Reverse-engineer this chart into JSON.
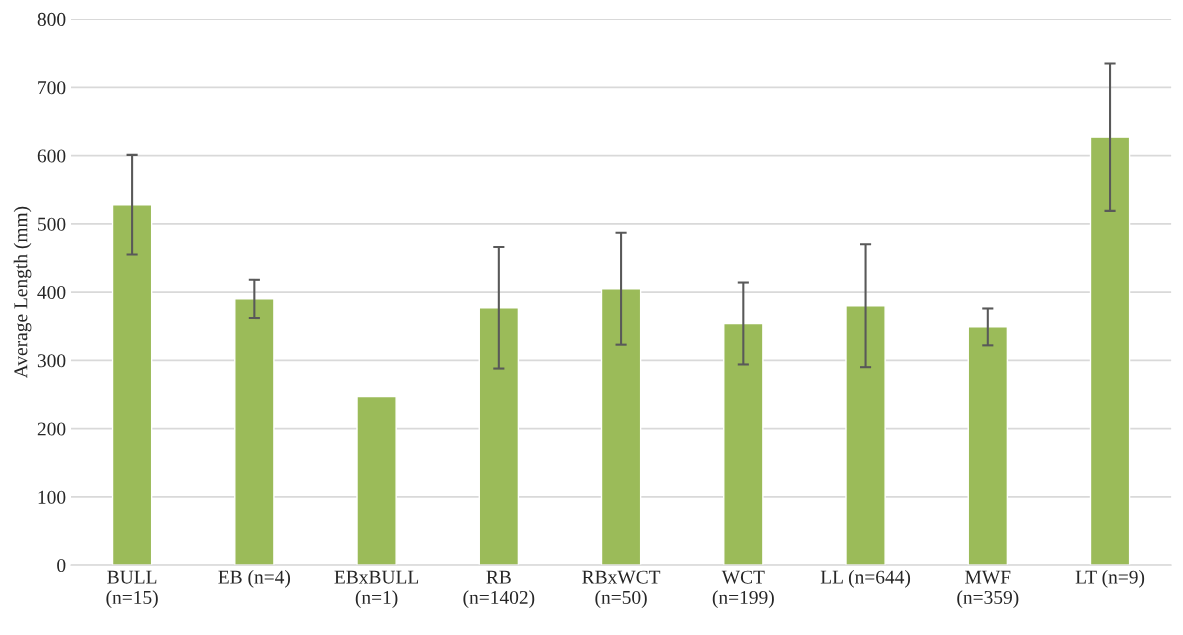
{
  "chart_data": {
    "type": "bar",
    "ylabel": "Average Length (mm)",
    "categories": [
      "BULL\n(n=15)",
      "EB (n=4)",
      "EBxBULL\n(n=1)",
      "RB\n(n=1402)",
      "RBxWCT\n(n=50)",
      "WCT\n(n=199)",
      "LL (n=644)",
      "MWF\n(n=359)",
      "LT (n=9)"
    ],
    "values": [
      528,
      390,
      247,
      377,
      405,
      354,
      380,
      349,
      627
    ],
    "errors": [
      73,
      28,
      null,
      89,
      82,
      60,
      90,
      27,
      108
    ],
    "color": "#9bbb59",
    "ylim": [
      0,
      800
    ],
    "yticks": [
      0,
      100,
      200,
      300,
      400,
      500,
      600,
      700,
      800
    ],
    "grid": "y"
  }
}
